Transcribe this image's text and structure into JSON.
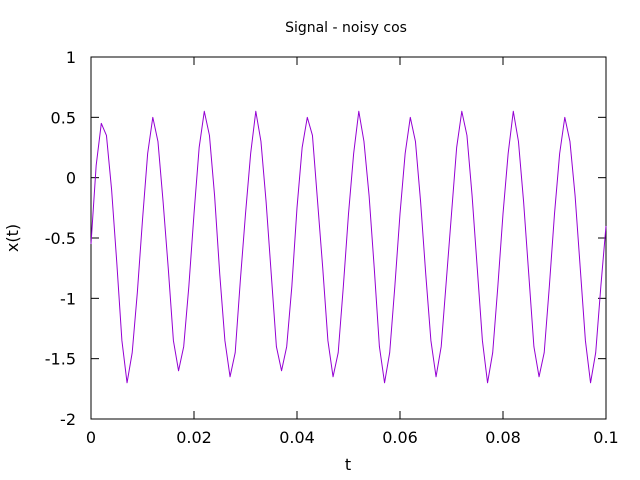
{
  "chart_data": {
    "type": "line",
    "title": "Signal - noisy cos",
    "xlabel": "t",
    "ylabel": "x(t)",
    "xlim": [
      0,
      0.1
    ],
    "ylim": [
      -2,
      1
    ],
    "xticks": [
      "0",
      "0.02",
      "0.04",
      "0.06",
      "0.08",
      "0.1"
    ],
    "yticks": [
      "1",
      "0.5",
      "0",
      "-0.5",
      "-1",
      "-1.5",
      "-2"
    ],
    "grid": false,
    "legend": "none",
    "series": [
      {
        "color": "#9400d3",
        "x": [
          0,
          0.001,
          0.002,
          0.003,
          0.004,
          0.005,
          0.006,
          0.007,
          0.008,
          0.009,
          0.01,
          0.011,
          0.012,
          0.013,
          0.014,
          0.015,
          0.016,
          0.017,
          0.018,
          0.019,
          0.02,
          0.021,
          0.022,
          0.023,
          0.024,
          0.025,
          0.026,
          0.027,
          0.028,
          0.029,
          0.03,
          0.031,
          0.032,
          0.033,
          0.034,
          0.035,
          0.036,
          0.037,
          0.038,
          0.039,
          0.04,
          0.041,
          0.042,
          0.043,
          0.044,
          0.045,
          0.046,
          0.047,
          0.048,
          0.049,
          0.05,
          0.051,
          0.052,
          0.053,
          0.054,
          0.055,
          0.056,
          0.057,
          0.058,
          0.059,
          0.06,
          0.061,
          0.062,
          0.063,
          0.064,
          0.065,
          0.066,
          0.067,
          0.068,
          0.069,
          0.07,
          0.071,
          0.072,
          0.073,
          0.074,
          0.075,
          0.076,
          0.077,
          0.078,
          0.079,
          0.08,
          0.081,
          0.082,
          0.083,
          0.084,
          0.085,
          0.086,
          0.087,
          0.088,
          0.089,
          0.09,
          0.091,
          0.092,
          0.093,
          0.094,
          0.095,
          0.096,
          0.097,
          0.098,
          0.099,
          0.1
        ],
        "y": [
          -0.55,
          0.1,
          0.45,
          0.35,
          -0.1,
          -0.7,
          -1.35,
          -1.7,
          -1.45,
          -0.95,
          -0.35,
          0.2,
          0.5,
          0.3,
          -0.2,
          -0.75,
          -1.35,
          -1.6,
          -1.4,
          -0.9,
          -0.3,
          0.25,
          0.55,
          0.35,
          -0.15,
          -0.8,
          -1.35,
          -1.65,
          -1.45,
          -0.85,
          -0.3,
          0.2,
          0.55,
          0.3,
          -0.2,
          -0.8,
          -1.4,
          -1.6,
          -1.4,
          -0.9,
          -0.25,
          0.25,
          0.5,
          0.35,
          -0.2,
          -0.75,
          -1.35,
          -1.65,
          -1.45,
          -0.9,
          -0.3,
          0.2,
          0.55,
          0.3,
          -0.15,
          -0.75,
          -1.4,
          -1.7,
          -1.45,
          -0.9,
          -0.3,
          0.2,
          0.5,
          0.3,
          -0.2,
          -0.8,
          -1.35,
          -1.65,
          -1.4,
          -0.85,
          -0.3,
          0.25,
          0.55,
          0.35,
          -0.15,
          -0.75,
          -1.35,
          -1.7,
          -1.45,
          -0.9,
          -0.3,
          0.2,
          0.55,
          0.3,
          -0.2,
          -0.8,
          -1.4,
          -1.65,
          -1.45,
          -0.9,
          -0.3,
          0.2,
          0.5,
          0.3,
          -0.15,
          -0.75,
          -1.35,
          -1.7,
          -1.45,
          -0.9,
          -0.4
        ]
      }
    ]
  }
}
